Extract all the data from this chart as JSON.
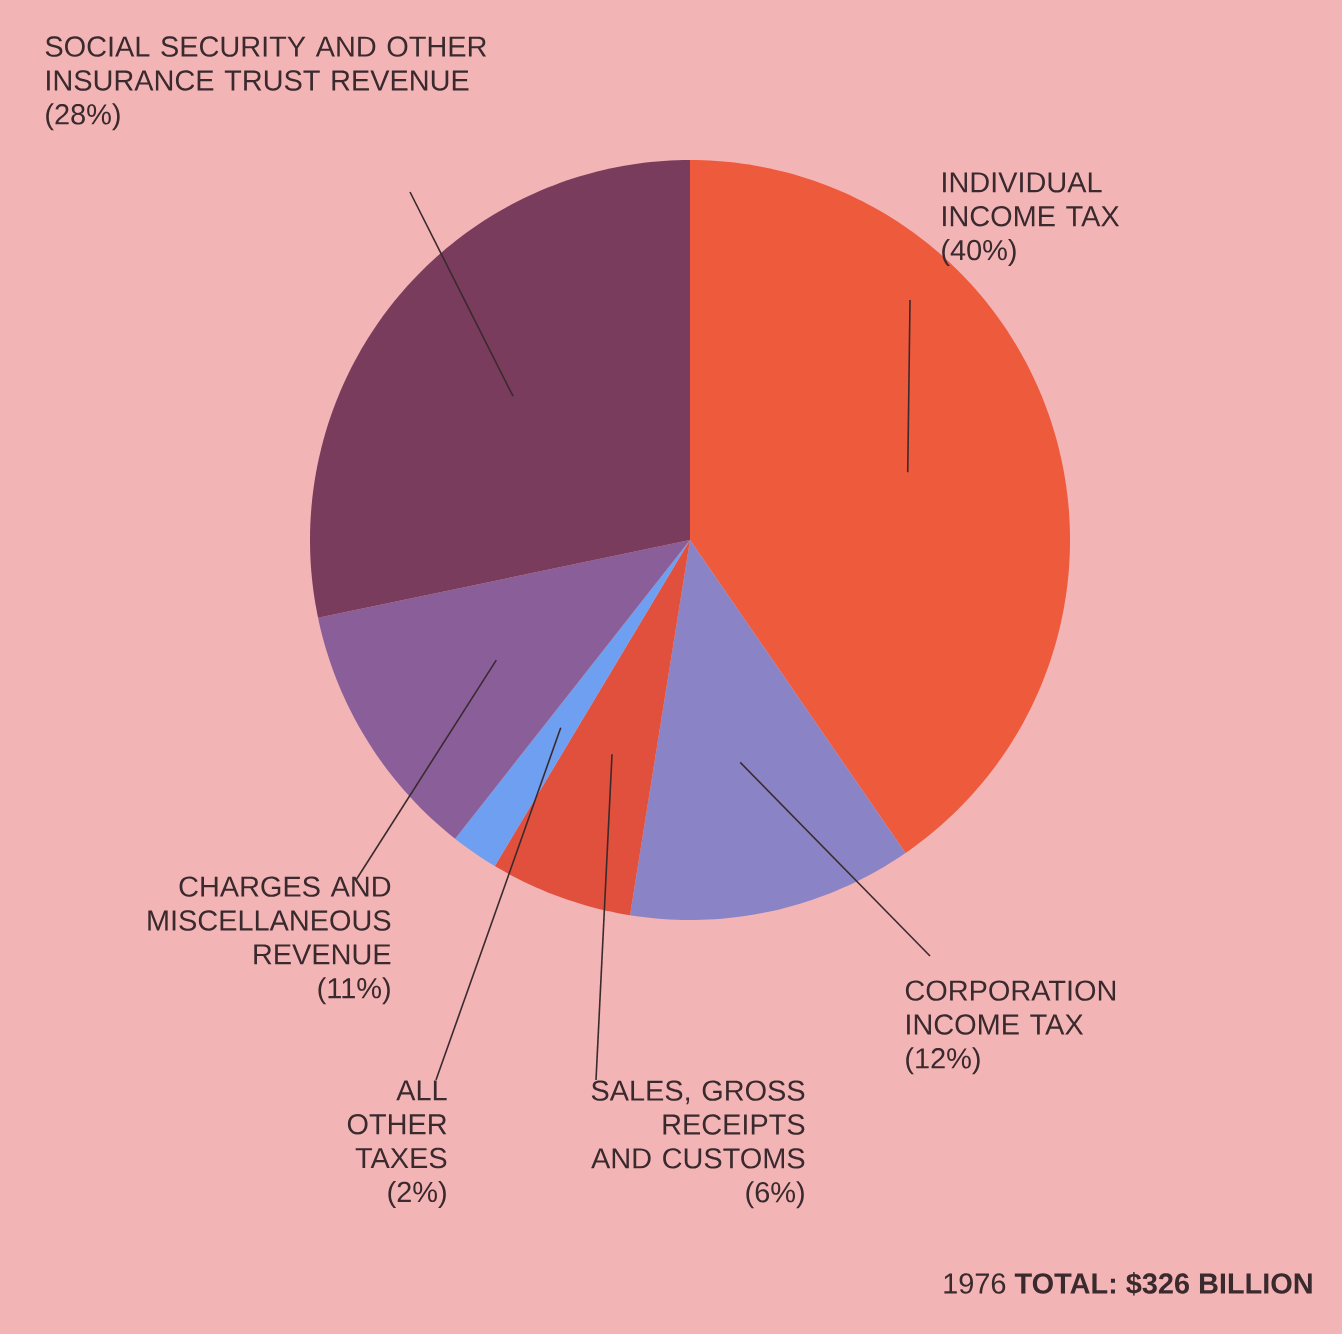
{
  "chart_data": {
    "type": "pie",
    "categories": [
      "INDIVIDUAL INCOME TAX",
      "CORPORATION INCOME TAX",
      "SALES, GROSS RECEIPTS AND CUSTOMS",
      "ALL OTHER TAXES",
      "CHARGES AND MISCELLANEOUS REVENUE",
      "SOCIAL SECURITY AND OTHER INSURANCE TRUST REVENUE"
    ],
    "values": [
      40,
      12,
      6,
      2,
      11,
      28
    ],
    "value_labels": [
      "(40%)",
      "(12%)",
      "(6%)",
      "(2%)",
      "(11%)",
      "(28%)"
    ],
    "colors": [
      "#ee5a3c",
      "#8a84c6",
      "#e0503c",
      "#6e9ff0",
      "#8a5e98",
      "#7a3c5c"
    ],
    "annotations": [
      "1976 **TOTAL: $326 BILLION**"
    ]
  }
}
